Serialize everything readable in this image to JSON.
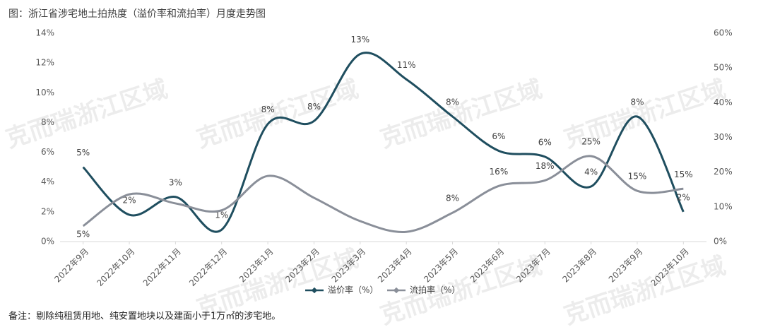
{
  "chart_data": {
    "type": "line",
    "title": "图：浙江省涉宅地土拍热度（溢价率和流拍率）月度走势图",
    "note": "备注：剔除纯租赁用地、纯安置地块以及建面小于1万㎡的涉宅地。",
    "watermark": "克而瑞浙江区域",
    "categories": [
      "2022年9月",
      "2022年10月",
      "2022年11月",
      "2022年12月",
      "2023年1月",
      "2023年2月",
      "2023年3月",
      "2023年4月",
      "2023年5月",
      "2023年6月",
      "2023年7月",
      "2023年8月",
      "2023年9月",
      "2023年10月"
    ],
    "series": [
      {
        "name": "溢价率（%）",
        "color": "#1f4e5f",
        "axis": "y",
        "values": [
          5,
          1.8,
          3,
          0.8,
          7.9,
          8.1,
          12.6,
          10.9,
          8.4,
          6.1,
          5.7,
          3.7,
          8.4,
          2
        ],
        "value_labels": [
          "5%",
          "2%",
          "3%",
          "1%",
          "8%",
          "8%",
          "13%",
          "11%",
          "8%",
          "6%",
          "6%",
          "4%",
          "8%",
          "2%"
        ]
      },
      {
        "name": "流拍率（%）",
        "color": "#8a8f99",
        "axis": "y2",
        "values": [
          4.5,
          13.6,
          11,
          9,
          18.9,
          12.6,
          5.9,
          2.8,
          8.3,
          16,
          17.6,
          24.6,
          14.6,
          15.2
        ],
        "value_labels": [
          "5%",
          null,
          null,
          null,
          null,
          null,
          null,
          null,
          "8%",
          "16%",
          "18%",
          "25%",
          "15%",
          "15%"
        ]
      }
    ],
    "ylim": [
      0,
      14
    ],
    "yticks": [
      {
        "value": 0,
        "label": "0%"
      },
      {
        "value": 2,
        "label": "2%"
      },
      {
        "value": 4,
        "label": "4%"
      },
      {
        "value": 6,
        "label": "6%"
      },
      {
        "value": 8,
        "label": "8%"
      },
      {
        "value": 10,
        "label": "10%"
      },
      {
        "value": 12,
        "label": "12%"
      },
      {
        "value": 14,
        "label": "14%"
      }
    ],
    "y2lim": [
      0,
      60
    ],
    "y2ticks": [
      {
        "value": 0,
        "label": "0%"
      },
      {
        "value": 10,
        "label": "10%"
      },
      {
        "value": 20,
        "label": "20%"
      },
      {
        "value": 30,
        "label": "30%"
      },
      {
        "value": 40,
        "label": "40%"
      },
      {
        "value": 50,
        "label": "50%"
      },
      {
        "value": 60,
        "label": "60%"
      }
    ],
    "grid": false,
    "legend": "bottom"
  }
}
